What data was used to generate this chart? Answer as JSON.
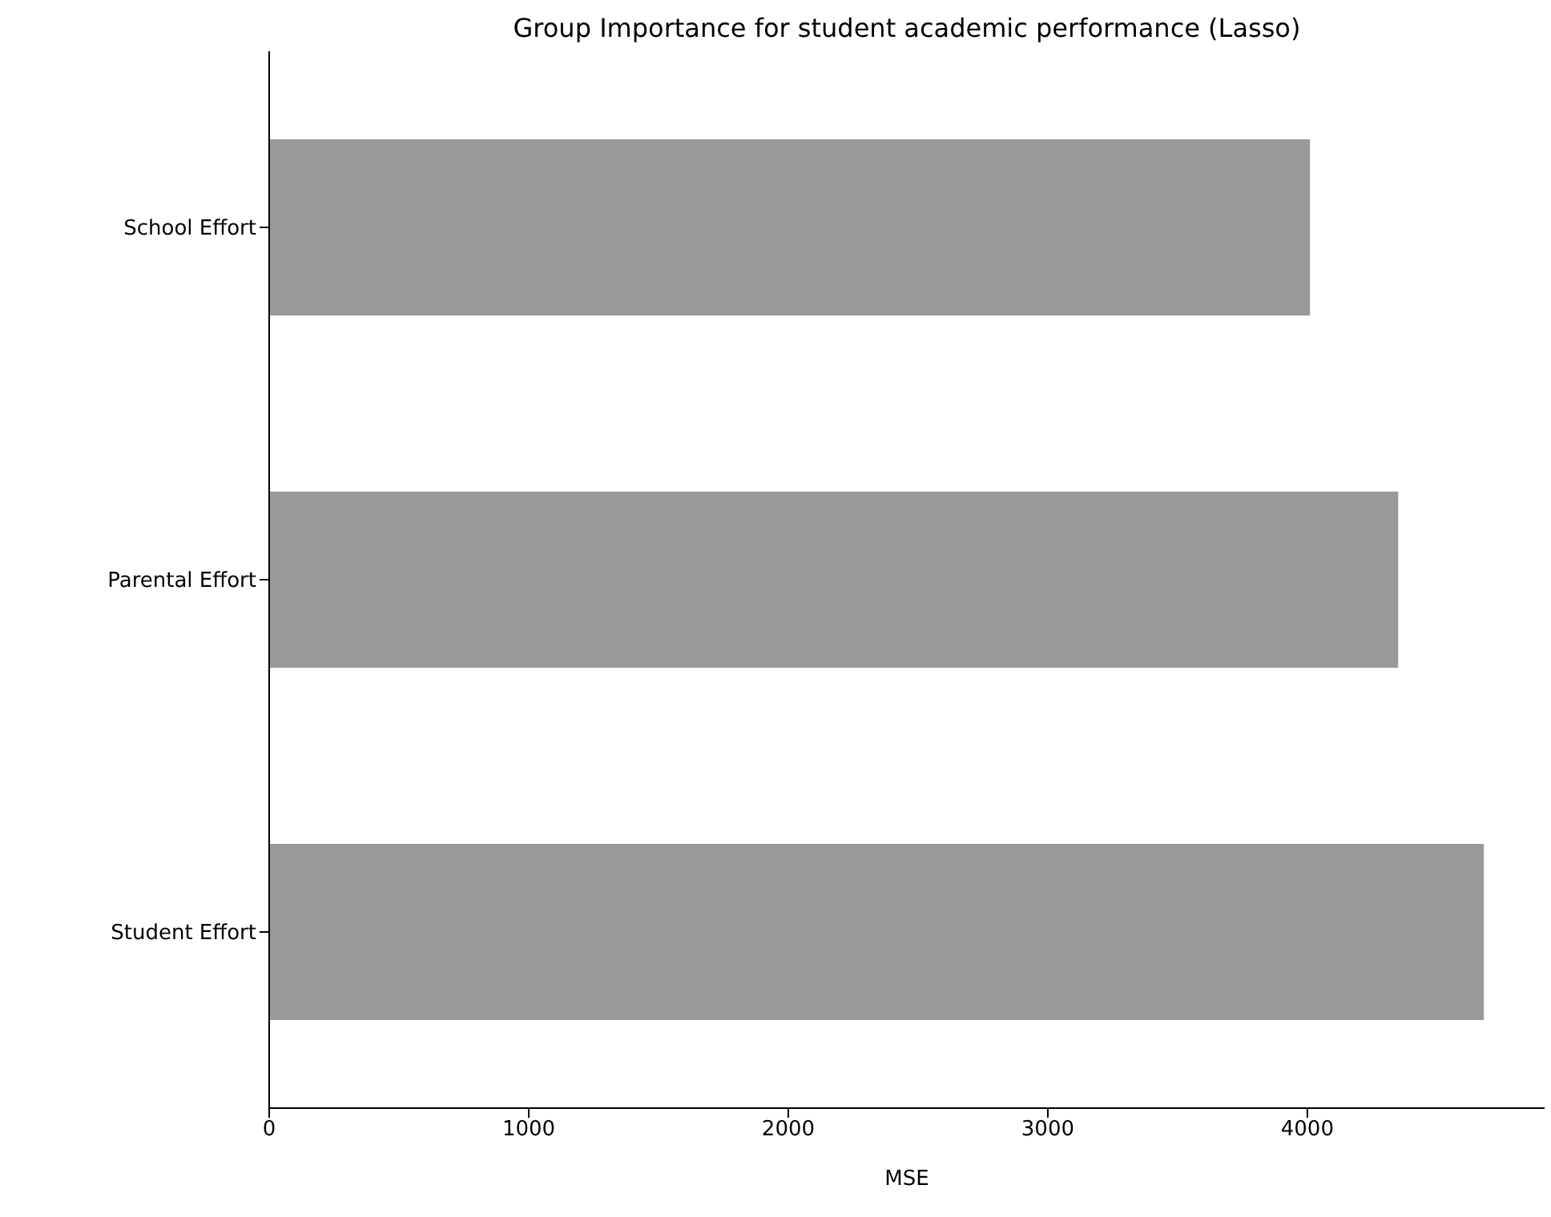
{
  "chart_data": {
    "type": "bar",
    "orientation": "horizontal",
    "title": "Group Importance for student academic performance (Lasso)",
    "xlabel": "MSE",
    "categories": [
      "School Effort",
      "Parental Effort",
      "Student Effort"
    ],
    "values": [
      4010,
      4350,
      4680
    ],
    "color": "#999999",
    "xlim": [
      0,
      4914
    ],
    "xticks": [
      0,
      1000,
      2000,
      3000,
      4000
    ],
    "grid": false,
    "legend": false
  }
}
